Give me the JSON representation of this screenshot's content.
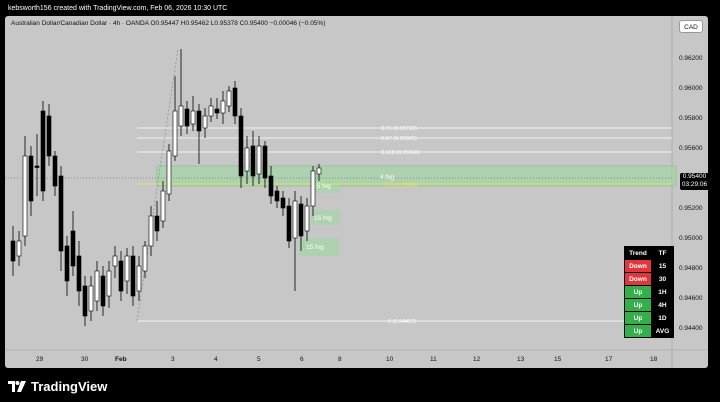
{
  "header": {
    "text": "kebsworth156 created with TradingView.com, Feb 06, 2026 10:30 UTC"
  },
  "chart": {
    "symbol_line": "Australian Dollar/Canadian Dollar · 4h · OANDA  O0.95447  H0.95462  L0.95378  C0.95400  −0.00046 (−0.05%)",
    "currency_button": "CAD",
    "price_tag_price": "0.95400",
    "price_tag_timer": "03:29:06",
    "y_axis_labels": [
      "0.96200",
      "0.96000",
      "0.95800",
      "0.95600",
      "0.95200",
      "0.95000",
      "0.94800",
      "0.94600",
      "0.94400"
    ],
    "x_axis_labels": [
      "29",
      "30",
      "Feb",
      "3",
      "4",
      "5",
      "6",
      "8",
      "10",
      "11",
      "12",
      "13",
      "15",
      "17",
      "18"
    ],
    "fib_labels": {
      "f071": "0.71 (0.95733)",
      "f067": "0.67 (0.95665)",
      "f0618": "0.618 (0.95568)",
      "f05": "0.5 (0.95358)",
      "f0": "0 (0.94457)"
    },
    "fvg_labels": {
      "zone_4": "4 fvg",
      "zone_15a": "15 fvg",
      "zone_15b": "15 fvg",
      "zone_15c": "15 fvg"
    },
    "colors": {
      "bull_candle": "#ffffff",
      "bear_candle": "#000000",
      "fvg_zone": "#a5d6a7",
      "fib_line": "#ffffff",
      "fib_05": "#e8e35a"
    }
  },
  "trend_table": {
    "header": {
      "trend": "Trend",
      "tf": "TF"
    },
    "rows": [
      {
        "trend": "Down",
        "tf": "15"
      },
      {
        "trend": "Down",
        "tf": "30"
      },
      {
        "trend": "Up",
        "tf": "1H"
      },
      {
        "trend": "Up",
        "tf": "4H"
      },
      {
        "trend": "Up",
        "tf": "1D"
      },
      {
        "trend": "Up",
        "tf": "AVG"
      }
    ]
  },
  "footer": {
    "brand": "TradingView"
  }
}
